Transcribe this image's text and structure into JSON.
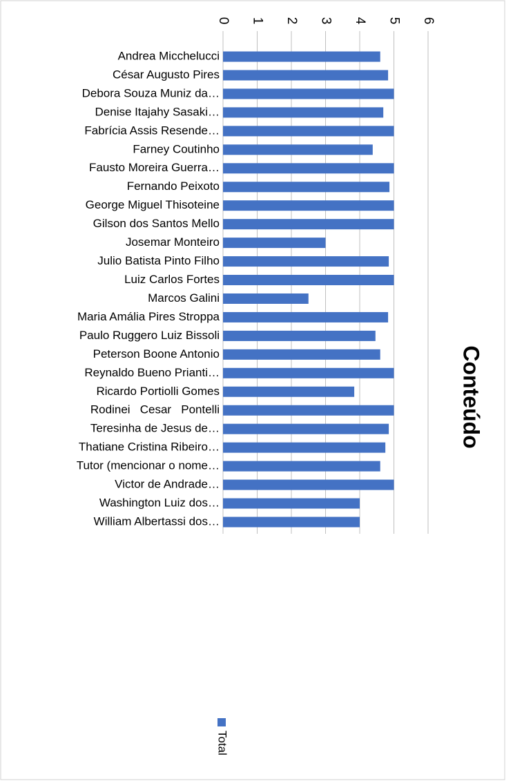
{
  "chart_data": {
    "type": "bar",
    "orientation": "horizontal",
    "title": "Conteúdo",
    "categories": [
      "Andrea Micchelucci",
      "César Augusto Pires",
      "Debora Souza Muniz da…",
      "Denise Itajahy Sasaki…",
      "Fabrícia Assis Resende…",
      "Farney Coutinho",
      "Fausto Moreira Guerra…",
      "Fernando Peixoto",
      "George Miguel Thisoteine",
      "Gilson dos Santos Mello",
      "Josemar Monteiro",
      "Julio Batista Pinto Filho",
      "Luiz Carlos Fortes",
      "Marcos Galini",
      "Maria Amália Pires Stroppa",
      "Paulo Ruggero Luiz Bissoli",
      "Peterson Boone Antonio",
      "Reynaldo Bueno Prianti…",
      "Ricardo Portiolli Gomes",
      "Rodinei   Cesar   Pontelli",
      "Teresinha de Jesus de…",
      "Thatiane Cristina Ribeiro…",
      "Tutor (mencionar o nome…",
      "Victor de Andrade…",
      "Washington Luiz dos…",
      "William Albertassi dos…"
    ],
    "series": [
      {
        "name": "Total",
        "color": "#4472c4",
        "values": [
          4.6,
          4.83,
          5,
          4.69,
          5,
          4.38,
          5,
          4.87,
          5,
          5,
          3,
          4.85,
          5,
          2.5,
          4.83,
          4.46,
          4.6,
          5,
          3.84,
          5,
          4.85,
          4.75,
          4.6,
          5,
          4,
          4
        ]
      }
    ],
    "xlim": [
      0,
      6
    ],
    "xticks": [
      0,
      1,
      2,
      3,
      4,
      5,
      6
    ],
    "grid": true,
    "legend": "bottom"
  }
}
